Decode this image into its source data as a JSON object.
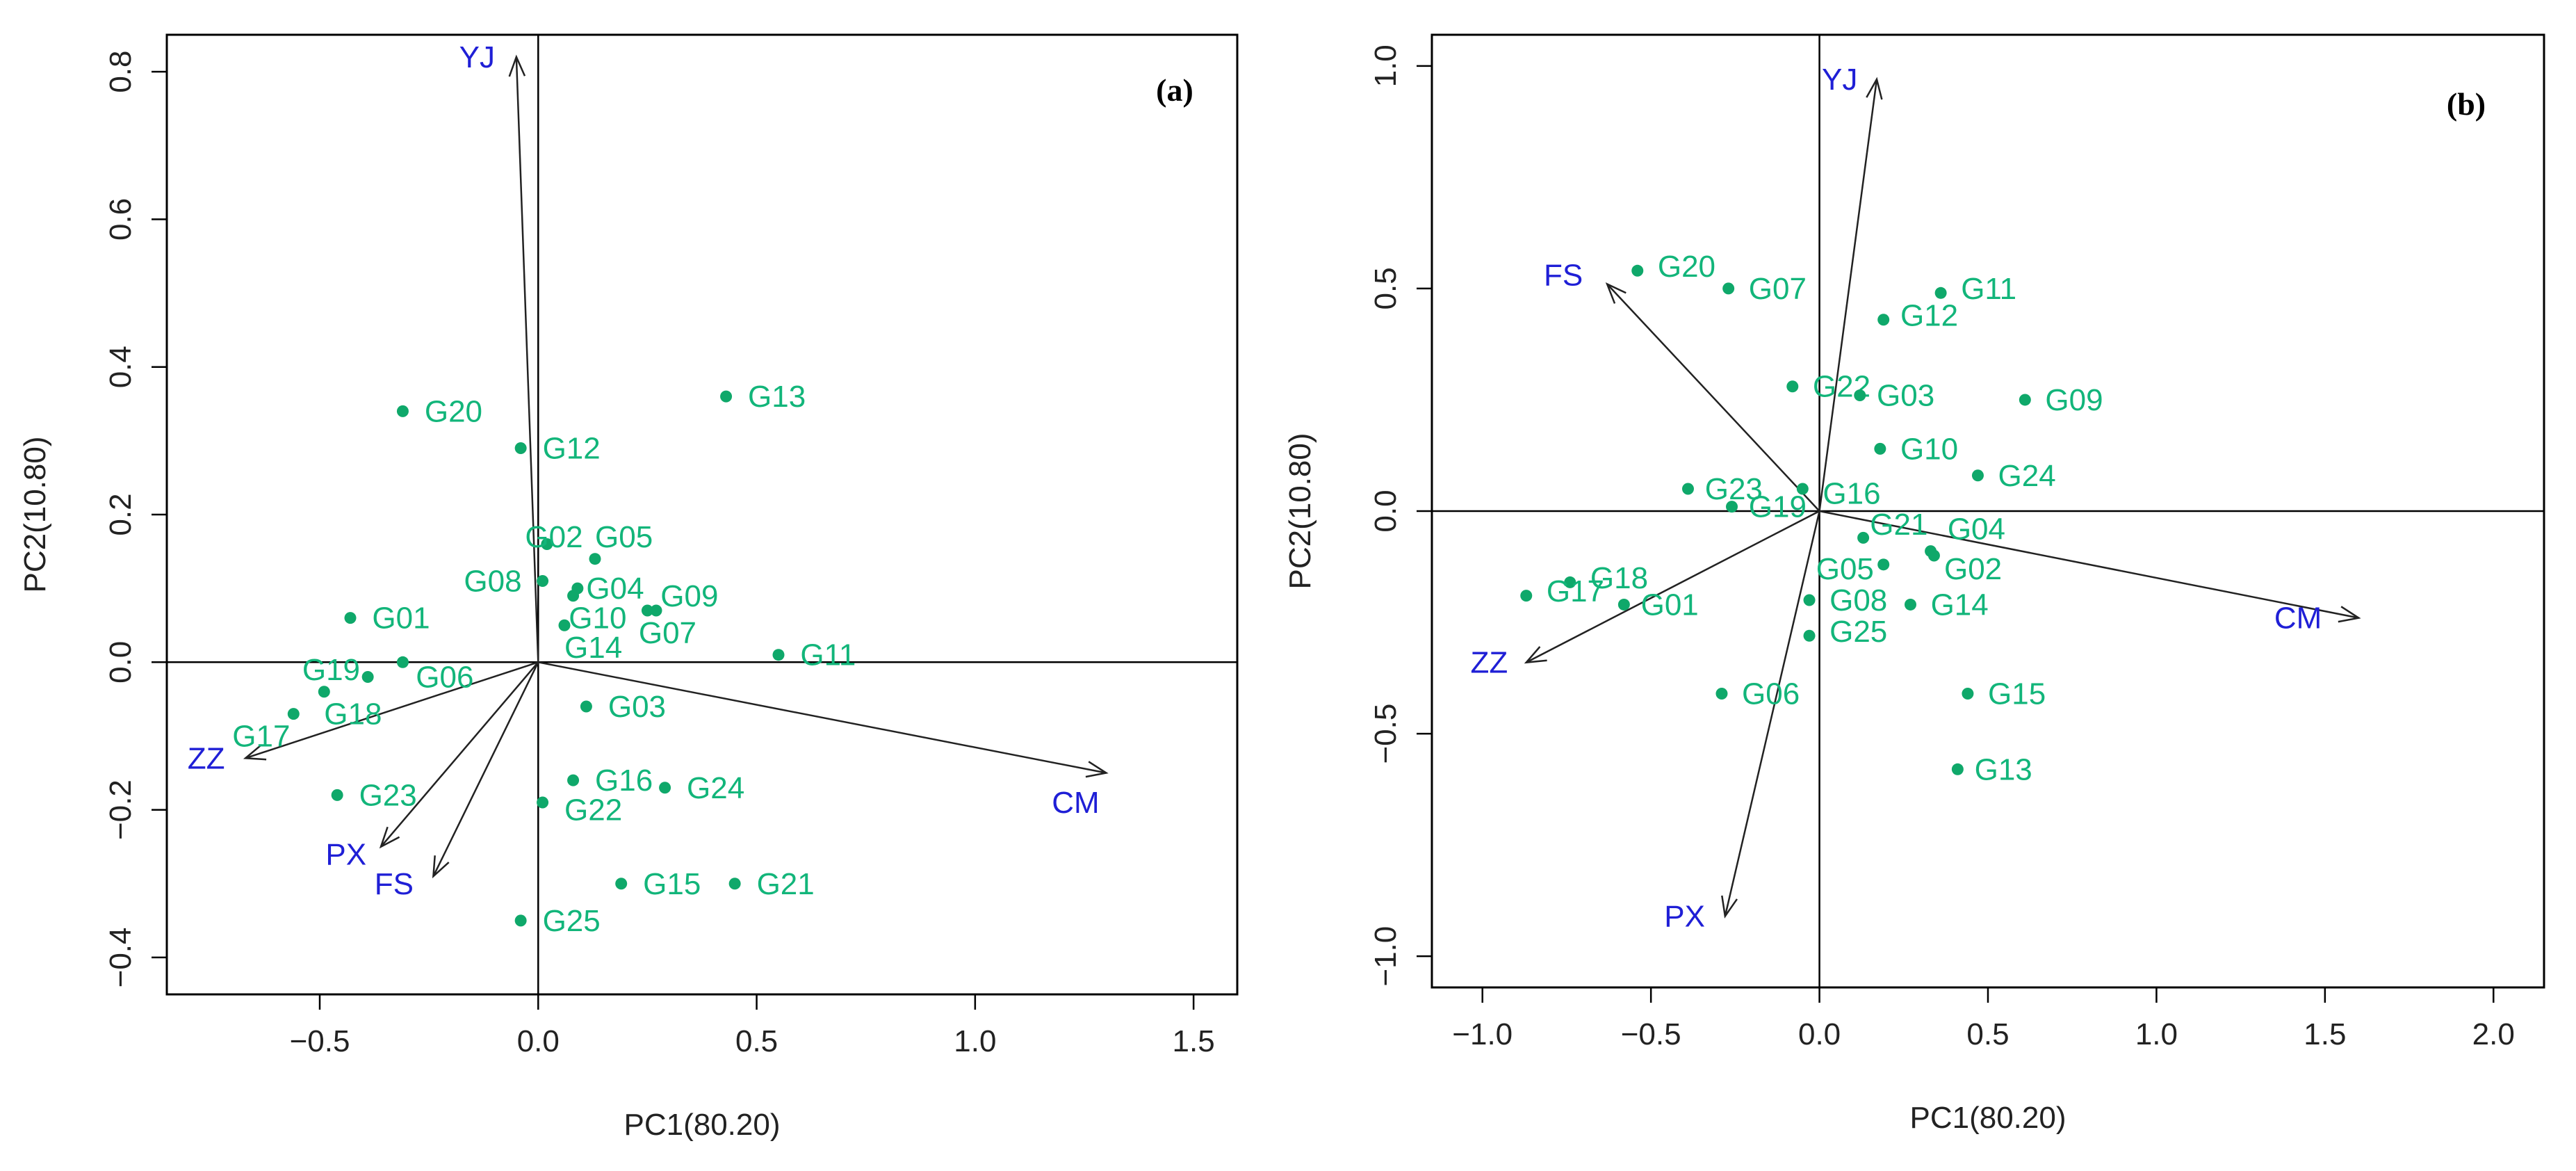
{
  "chart_data": [
    {
      "type": "scatter",
      "title": "",
      "panel_label": "(a)",
      "xlabel": "PC1(80.20)",
      "ylabel": "PC2(10.80)",
      "xlim": [
        -0.85,
        1.6
      ],
      "ylim": [
        -0.45,
        0.85
      ],
      "xticks": [
        -0.5,
        0.0,
        0.5,
        1.0,
        1.5
      ],
      "xtick_labels": [
        "−0.5",
        "0.0",
        "0.5",
        "1.0",
        "1.5"
      ],
      "yticks": [
        -0.4,
        -0.2,
        0.0,
        0.2,
        0.4,
        0.6,
        0.8
      ],
      "ytick_labels": [
        "−0.4",
        "−0.2",
        "0.0",
        "0.2",
        "0.4",
        "0.6",
        "0.8"
      ],
      "reference_lines": {
        "x": 0,
        "y": 0
      },
      "vectors": [
        {
          "name": "YJ",
          "x": -0.05,
          "y": 0.82,
          "label_x": -0.14,
          "label_y": 0.82
        },
        {
          "name": "ZZ",
          "x": -0.67,
          "y": -0.13,
          "label_x": -0.76,
          "label_y": -0.13
        },
        {
          "name": "PX",
          "x": -0.36,
          "y": -0.25,
          "label_x": -0.44,
          "label_y": -0.26
        },
        {
          "name": "FS",
          "x": -0.24,
          "y": -0.29,
          "label_x": -0.33,
          "label_y": -0.3
        },
        {
          "name": "CM",
          "x": 1.3,
          "y": -0.15,
          "label_x": 1.23,
          "label_y": -0.19
        }
      ],
      "points": [
        {
          "name": "G13",
          "x": 0.43,
          "y": 0.36,
          "label_x": 0.48,
          "label_y": 0.36
        },
        {
          "name": "G20",
          "x": -0.31,
          "y": 0.34,
          "label_x": -0.26,
          "label_y": 0.34
        },
        {
          "name": "G12",
          "x": -0.04,
          "y": 0.29,
          "label_x": 0.01,
          "label_y": 0.29
        },
        {
          "name": "G02",
          "x": 0.02,
          "y": 0.16,
          "label_x": -0.03,
          "label_y": 0.17
        },
        {
          "name": "G05",
          "x": 0.13,
          "y": 0.14,
          "label_x": 0.13,
          "label_y": 0.17
        },
        {
          "name": "G08",
          "x": 0.01,
          "y": 0.11,
          "label_x": -0.17,
          "label_y": 0.11
        },
        {
          "name": "G04",
          "x": 0.09,
          "y": 0.1,
          "label_x": 0.11,
          "label_y": 0.1
        },
        {
          "name": "G10",
          "x": 0.08,
          "y": 0.09,
          "label_x": 0.07,
          "label_y": 0.06
        },
        {
          "name": "G09",
          "x": 0.27,
          "y": 0.07,
          "label_x": 0.28,
          "label_y": 0.09
        },
        {
          "name": "G07",
          "x": 0.25,
          "y": 0.07,
          "label_x": 0.23,
          "label_y": 0.04
        },
        {
          "name": "G14",
          "x": 0.06,
          "y": 0.05,
          "label_x": 0.06,
          "label_y": 0.02
        },
        {
          "name": "G01",
          "x": -0.43,
          "y": 0.06,
          "label_x": -0.38,
          "label_y": 0.06
        },
        {
          "name": "G11",
          "x": 0.55,
          "y": 0.01,
          "label_x": 0.6,
          "label_y": 0.01
        },
        {
          "name": "G19",
          "x": -0.39,
          "y": -0.02,
          "label_x": -0.54,
          "label_y": -0.01
        },
        {
          "name": "G06",
          "x": -0.31,
          "y": 0.0,
          "label_x": -0.28,
          "label_y": -0.02
        },
        {
          "name": "G18",
          "x": -0.49,
          "y": -0.04,
          "label_x": -0.49,
          "label_y": -0.07
        },
        {
          "name": "G17",
          "x": -0.56,
          "y": -0.07,
          "label_x": -0.7,
          "label_y": -0.1
        },
        {
          "name": "G03",
          "x": 0.11,
          "y": -0.06,
          "label_x": 0.16,
          "label_y": -0.06
        },
        {
          "name": "G16",
          "x": 0.08,
          "y": -0.16,
          "label_x": 0.13,
          "label_y": -0.16
        },
        {
          "name": "G24",
          "x": 0.29,
          "y": -0.17,
          "label_x": 0.34,
          "label_y": -0.17
        },
        {
          "name": "G23",
          "x": -0.46,
          "y": -0.18,
          "label_x": -0.41,
          "label_y": -0.18
        },
        {
          "name": "G22",
          "x": 0.01,
          "y": -0.19,
          "label_x": 0.06,
          "label_y": -0.2
        },
        {
          "name": "G15",
          "x": 0.19,
          "y": -0.3,
          "label_x": 0.24,
          "label_y": -0.3
        },
        {
          "name": "G21",
          "x": 0.45,
          "y": -0.3,
          "label_x": 0.5,
          "label_y": -0.3
        },
        {
          "name": "G25",
          "x": -0.04,
          "y": -0.35,
          "label_x": 0.01,
          "label_y": -0.35
        }
      ]
    },
    {
      "type": "scatter",
      "title": "",
      "panel_label": "(b)",
      "xlabel": "PC1(80.20)",
      "ylabel": "PC2(10.80)",
      "xlim": [
        -1.15,
        2.15
      ],
      "ylim": [
        -1.07,
        1.07
      ],
      "xticks": [
        -1.0,
        -0.5,
        0.0,
        0.5,
        1.0,
        1.5,
        2.0
      ],
      "xtick_labels": [
        "−1.0",
        "−0.5",
        "0.0",
        "0.5",
        "1.0",
        "1.5",
        "2.0"
      ],
      "yticks": [
        -1.0,
        -0.5,
        0.0,
        0.5,
        1.0
      ],
      "ytick_labels": [
        "−1.0",
        "−0.5",
        "0.0",
        "0.5",
        "1.0"
      ],
      "reference_lines": {
        "x": 0,
        "y": 0
      },
      "vectors": [
        {
          "name": "YJ",
          "x": 0.17,
          "y": 0.97,
          "label_x": 0.06,
          "label_y": 0.97
        },
        {
          "name": "FS",
          "x": -0.63,
          "y": 0.51,
          "label_x": -0.76,
          "label_y": 0.53
        },
        {
          "name": "ZZ",
          "x": -0.87,
          "y": -0.34,
          "label_x": -0.98,
          "label_y": -0.34
        },
        {
          "name": "PX",
          "x": -0.28,
          "y": -0.91,
          "label_x": -0.4,
          "label_y": -0.91
        },
        {
          "name": "CM",
          "x": 1.6,
          "y": -0.24,
          "label_x": 1.42,
          "label_y": -0.24
        }
      ],
      "points": [
        {
          "name": "G20",
          "x": -0.54,
          "y": 0.54,
          "label_x": -0.48,
          "label_y": 0.55
        },
        {
          "name": "G07",
          "x": -0.27,
          "y": 0.5,
          "label_x": -0.21,
          "label_y": 0.5
        },
        {
          "name": "G11",
          "x": 0.36,
          "y": 0.49,
          "label_x": 0.42,
          "label_y": 0.5
        },
        {
          "name": "G12",
          "x": 0.19,
          "y": 0.43,
          "label_x": 0.24,
          "label_y": 0.44
        },
        {
          "name": "G22",
          "x": -0.08,
          "y": 0.28,
          "label_x": -0.02,
          "label_y": 0.28
        },
        {
          "name": "G03",
          "x": 0.12,
          "y": 0.26,
          "label_x": 0.17,
          "label_y": 0.26
        },
        {
          "name": "G09",
          "x": 0.61,
          "y": 0.25,
          "label_x": 0.67,
          "label_y": 0.25
        },
        {
          "name": "G10",
          "x": 0.18,
          "y": 0.14,
          "label_x": 0.24,
          "label_y": 0.14
        },
        {
          "name": "G24",
          "x": 0.47,
          "y": 0.08,
          "label_x": 0.53,
          "label_y": 0.08
        },
        {
          "name": "G23",
          "x": -0.39,
          "y": 0.05,
          "label_x": -0.34,
          "label_y": 0.05
        },
        {
          "name": "G16",
          "x": -0.05,
          "y": 0.05,
          "label_x": 0.01,
          "label_y": 0.04
        },
        {
          "name": "G19",
          "x": -0.26,
          "y": 0.01,
          "label_x": -0.21,
          "label_y": 0.01
        },
        {
          "name": "G21",
          "x": 0.13,
          "y": -0.06,
          "label_x": 0.15,
          "label_y": -0.03
        },
        {
          "name": "G04",
          "x": 0.33,
          "y": -0.09,
          "label_x": 0.38,
          "label_y": -0.04
        },
        {
          "name": "G02",
          "x": 0.34,
          "y": -0.1,
          "label_x": 0.37,
          "label_y": -0.13
        },
        {
          "name": "G05",
          "x": 0.19,
          "y": -0.12,
          "label_x": -0.01,
          "label_y": -0.13
        },
        {
          "name": "G18",
          "x": -0.74,
          "y": -0.16,
          "label_x": -0.68,
          "label_y": -0.15
        },
        {
          "name": "G17",
          "x": -0.87,
          "y": -0.19,
          "label_x": -0.81,
          "label_y": -0.18
        },
        {
          "name": "G01",
          "x": -0.58,
          "y": -0.21,
          "label_x": -0.53,
          "label_y": -0.21
        },
        {
          "name": "G08",
          "x": -0.03,
          "y": -0.2,
          "label_x": 0.03,
          "label_y": -0.2
        },
        {
          "name": "G14",
          "x": 0.27,
          "y": -0.21,
          "label_x": 0.33,
          "label_y": -0.21
        },
        {
          "name": "G25",
          "x": -0.03,
          "y": -0.28,
          "label_x": 0.03,
          "label_y": -0.27
        },
        {
          "name": "G06",
          "x": -0.29,
          "y": -0.41,
          "label_x": -0.23,
          "label_y": -0.41
        },
        {
          "name": "G15",
          "x": 0.44,
          "y": -0.41,
          "label_x": 0.5,
          "label_y": -0.41
        },
        {
          "name": "G13",
          "x": 0.41,
          "y": -0.58,
          "label_x": 0.46,
          "label_y": -0.58
        }
      ]
    }
  ]
}
